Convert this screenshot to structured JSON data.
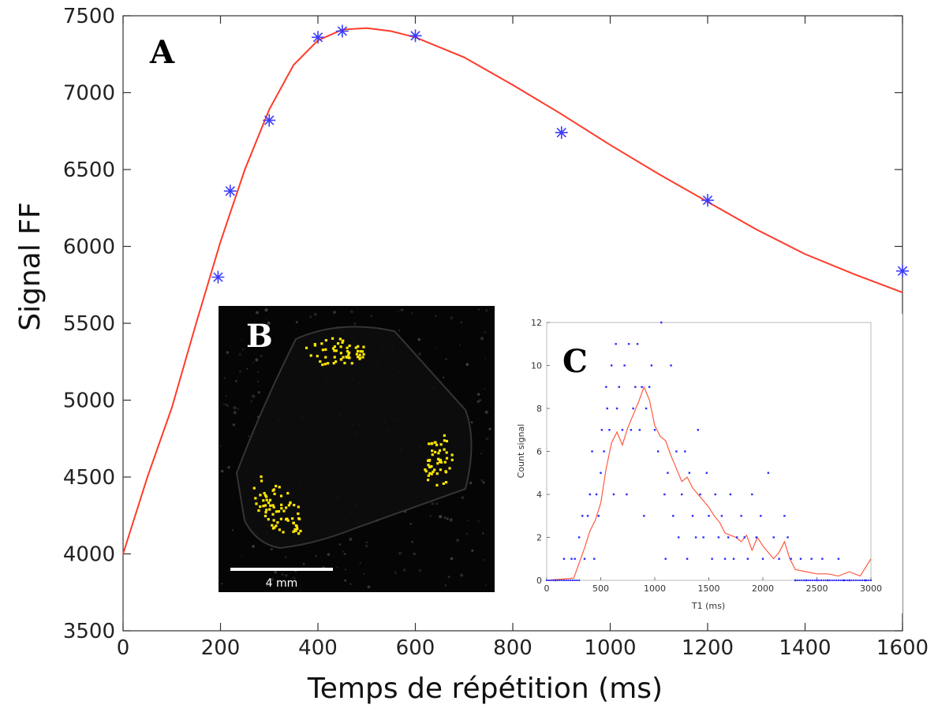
{
  "chart_data": [
    {
      "panel": "A",
      "type": "scatter",
      "title": "",
      "xlabel": "Temps de répétition (ms)",
      "ylabel": "Signal FF",
      "xlim": [
        0,
        1600
      ],
      "ylim": [
        3500,
        7500
      ],
      "xticks": [
        0,
        200,
        400,
        600,
        800,
        1000,
        1200,
        1400,
        1600
      ],
      "yticks": [
        3500,
        4000,
        4500,
        5000,
        5500,
        6000,
        6500,
        7000,
        7500
      ],
      "grid": false,
      "legend": "none",
      "series": [
        {
          "kind": "points",
          "marker": "asterisk",
          "color": "#3b3bff",
          "x": [
            195,
            220,
            300,
            400,
            450,
            600,
            900,
            1200,
            1600
          ],
          "y": [
            5800,
            6360,
            6820,
            7360,
            7400,
            7370,
            6740,
            6300,
            5840
          ]
        },
        {
          "kind": "fit",
          "color": "#ff3b2a",
          "x": [
            0,
            50,
            100,
            150,
            200,
            250,
            300,
            350,
            400,
            450,
            500,
            550,
            600,
            700,
            800,
            900,
            1000,
            1100,
            1200,
            1300,
            1400,
            1500,
            1600
          ],
          "y": [
            4000,
            4500,
            4950,
            5500,
            6030,
            6500,
            6890,
            7180,
            7340,
            7410,
            7420,
            7400,
            7360,
            7230,
            7050,
            6860,
            6660,
            6470,
            6290,
            6110,
            5950,
            5820,
            5700
          ]
        }
      ]
    },
    {
      "panel": "C",
      "type": "scatter",
      "title": "",
      "xlabel": "T1 (ms)",
      "ylabel": "Count signal",
      "xlim": [
        0,
        3000
      ],
      "ylim": [
        0,
        12
      ],
      "xticks": [
        0,
        500,
        1000,
        1500,
        2000,
        2500,
        3000
      ],
      "yticks": [
        0,
        2,
        4,
        6,
        8,
        10,
        12
      ],
      "grid": false,
      "legend": "none",
      "series": [
        {
          "kind": "points",
          "marker": "dot",
          "color": "#2b2bff",
          "x": [
            80,
            160,
            230,
            260,
            300,
            330,
            350,
            380,
            400,
            420,
            440,
            460,
            480,
            500,
            510,
            530,
            550,
            560,
            580,
            600,
            620,
            640,
            650,
            670,
            700,
            720,
            740,
            760,
            780,
            800,
            820,
            840,
            860,
            880,
            900,
            920,
            950,
            970,
            1000,
            1030,
            1060,
            1090,
            1100,
            1120,
            1150,
            1170,
            1200,
            1220,
            1250,
            1280,
            1300,
            1320,
            1350,
            1380,
            1400,
            1420,
            1450,
            1480,
            1500,
            1530,
            1560,
            1590,
            1620,
            1650,
            1680,
            1700,
            1730,
            1760,
            1800,
            1830,
            1860,
            1900,
            1940,
            1980,
            2000,
            2050,
            2100,
            2150,
            2200,
            2230,
            2260,
            2300,
            2350,
            2400,
            2450,
            2500,
            2550,
            2600,
            2700,
            2750,
            2800,
            2950
          ],
          "y": [
            0,
            1,
            1,
            1,
            2,
            3,
            1,
            3,
            4,
            6,
            1,
            4,
            3,
            5,
            7,
            6,
            9,
            8,
            7,
            10,
            4,
            11,
            8,
            9,
            7,
            10,
            4,
            11,
            7,
            8,
            9,
            11,
            7,
            9,
            3,
            8,
            9,
            10,
            7,
            6,
            12,
            4,
            1,
            5,
            10,
            3,
            6,
            2,
            4,
            6,
            1,
            5,
            3,
            2,
            7,
            4,
            2,
            5,
            3,
            1,
            4,
            2,
            3,
            1,
            2,
            4,
            1,
            2,
            3,
            2,
            1,
            4,
            2,
            3,
            1,
            5,
            2,
            1,
            3,
            2,
            1,
            0,
            1,
            0,
            1,
            0,
            1,
            0,
            1,
            0,
            0,
            0
          ]
        },
        {
          "kind": "smoothed",
          "color": "#ff5a40",
          "x": [
            0,
            250,
            300,
            350,
            400,
            450,
            500,
            550,
            600,
            650,
            700,
            750,
            800,
            850,
            900,
            950,
            1000,
            1050,
            1100,
            1150,
            1200,
            1250,
            1300,
            1350,
            1400,
            1450,
            1500,
            1550,
            1600,
            1650,
            1700,
            1750,
            1800,
            1850,
            1900,
            1950,
            2000,
            2050,
            2100,
            2150,
            2200,
            2250,
            2300,
            2400,
            2500,
            2600,
            2700,
            2800,
            2900,
            3000
          ],
          "y": [
            0,
            0.1,
            0.8,
            1.5,
            2.3,
            2.8,
            3.6,
            5.2,
            6.4,
            6.9,
            6.3,
            7.1,
            7.7,
            8.3,
            9.0,
            8.4,
            7.2,
            6.7,
            6.5,
            5.8,
            5.2,
            4.6,
            4.8,
            4.3,
            4.0,
            3.7,
            3.4,
            3.0,
            2.7,
            2.2,
            2.1,
            2.0,
            1.8,
            2.1,
            1.4,
            2.0,
            1.6,
            1.3,
            1.0,
            1.3,
            1.8,
            1.0,
            0.5,
            0.4,
            0.3,
            0.3,
            0.2,
            0.4,
            0.2,
            1.0
          ]
        }
      ]
    }
  ],
  "panels": {
    "a_letter": "A",
    "b_letter": "B",
    "c_letter": "C"
  },
  "inset_b": {
    "scale_bar_label": "4 mm"
  }
}
